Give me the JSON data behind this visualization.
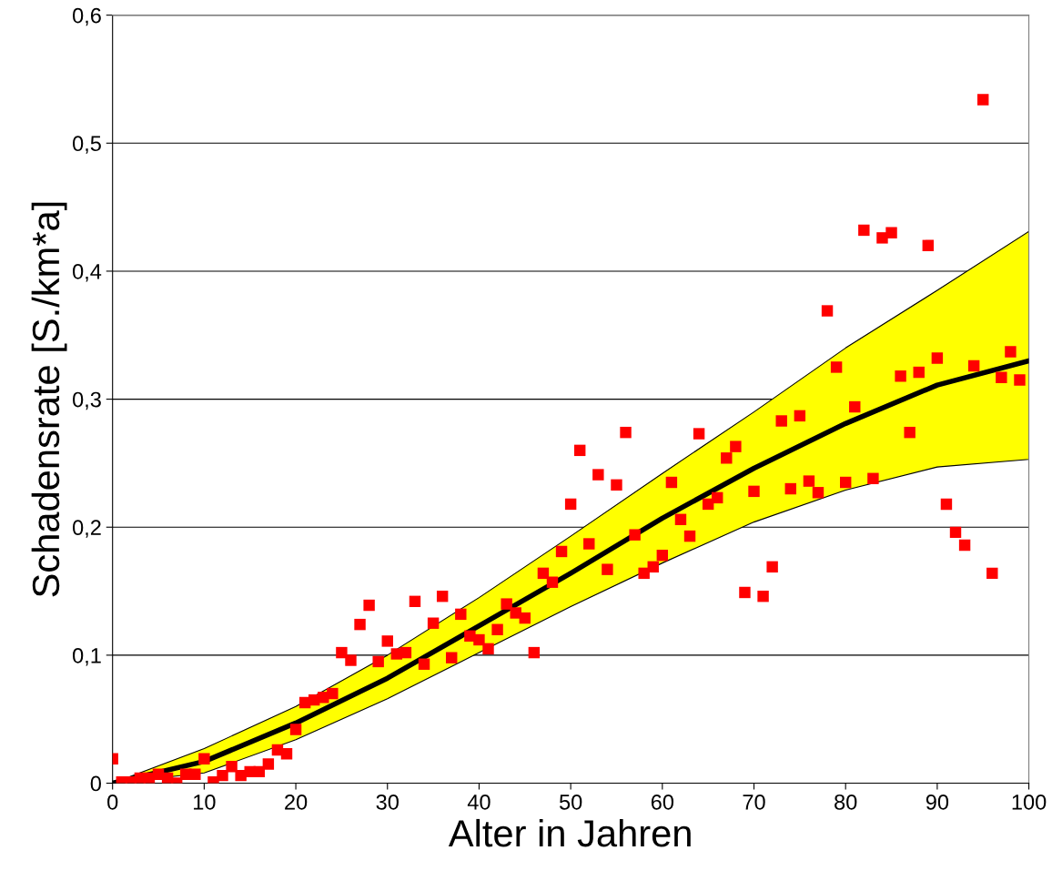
{
  "chart_data": {
    "type": "scatter",
    "xlabel": "Alter in Jahren",
    "ylabel": "Schadensrate [S./km*a]",
    "xlim": [
      0,
      100
    ],
    "ylim": [
      0,
      0.6
    ],
    "xticks": [
      0,
      10,
      20,
      30,
      40,
      50,
      60,
      70,
      80,
      90,
      100
    ],
    "yticks": [
      {
        "value": 0,
        "label": "0"
      },
      {
        "value": 0.1,
        "label": "0,1"
      },
      {
        "value": 0.2,
        "label": "0,2"
      },
      {
        "value": 0.3,
        "label": "0,3"
      },
      {
        "value": 0.4,
        "label": "0,4"
      },
      {
        "value": 0.5,
        "label": "0,5"
      },
      {
        "value": 0.6,
        "label": "0,6"
      }
    ],
    "grid": "y",
    "legend": false,
    "series": [
      {
        "type": "line",
        "color": "#000000",
        "marker": "none",
        "line_style": "solid",
        "x": [
          0,
          10,
          20,
          30,
          40,
          50,
          60,
          70,
          80,
          90,
          100
        ],
        "values": [
          0,
          0.017,
          0.047,
          0.082,
          0.123,
          0.164,
          0.207,
          0.246,
          0.281,
          0.311,
          0.33
        ],
        "lower": [
          0,
          0.008,
          0.034,
          0.066,
          0.102,
          0.138,
          0.172,
          0.204,
          0.229,
          0.247,
          0.253
        ],
        "upper": [
          0,
          0.027,
          0.06,
          0.1,
          0.145,
          0.193,
          0.242,
          0.29,
          0.34,
          0.385,
          0.431
        ]
      },
      {
        "type": "scatter",
        "color": "#ff0000",
        "marker": "square",
        "x": [
          0,
          1,
          2,
          3,
          4,
          5,
          6,
          7,
          8,
          9,
          10,
          11,
          12,
          13,
          14,
          15,
          16,
          17,
          18,
          19,
          20,
          21,
          22,
          23,
          24,
          25,
          26,
          27,
          28,
          29,
          30,
          31,
          32,
          33,
          34,
          35,
          36,
          37,
          38,
          39,
          40,
          41,
          42,
          43,
          44,
          45,
          46,
          47,
          48,
          49,
          50,
          51,
          52,
          53,
          54,
          55,
          56,
          57,
          58,
          59,
          60,
          61,
          62,
          63,
          64,
          65,
          66,
          67,
          68,
          69,
          70,
          71,
          72,
          73,
          74,
          75,
          76,
          77,
          78,
          79,
          80,
          81,
          82,
          83,
          84,
          85,
          86,
          87,
          88,
          89,
          90,
          91,
          92,
          93,
          94,
          95,
          96,
          97,
          98,
          99
        ],
        "values": [
          0.019,
          0.001,
          0.001,
          0.004,
          0.004,
          0.007,
          0.004,
          0.0,
          0.007,
          0.007,
          0.019,
          0.001,
          0.006,
          0.013,
          0.006,
          0.009,
          0.009,
          0.015,
          0.026,
          0.023,
          0.042,
          0.063,
          0.065,
          0.067,
          0.07,
          0.102,
          0.096,
          0.124,
          0.139,
          0.095,
          0.111,
          0.101,
          0.102,
          0.142,
          0.093,
          0.125,
          0.146,
          0.098,
          0.132,
          0.115,
          0.112,
          0.105,
          0.12,
          0.14,
          0.133,
          0.129,
          0.102,
          0.164,
          0.157,
          0.181,
          0.218,
          0.26,
          0.187,
          0.241,
          0.167,
          0.233,
          0.274,
          0.194,
          0.164,
          0.169,
          0.178,
          0.235,
          0.206,
          0.193,
          0.273,
          0.218,
          0.223,
          0.254,
          0.263,
          0.149,
          0.228,
          0.146,
          0.169,
          0.283,
          0.23,
          0.287,
          0.236,
          0.227,
          0.369,
          0.325,
          0.235,
          0.294,
          0.432,
          0.238,
          0.426,
          0.43,
          0.318,
          0.274,
          0.321,
          0.42,
          0.332,
          0.218,
          0.196,
          0.186,
          0.326,
          0.534,
          0.164,
          0.317,
          0.337,
          0.315
        ]
      }
    ]
  }
}
